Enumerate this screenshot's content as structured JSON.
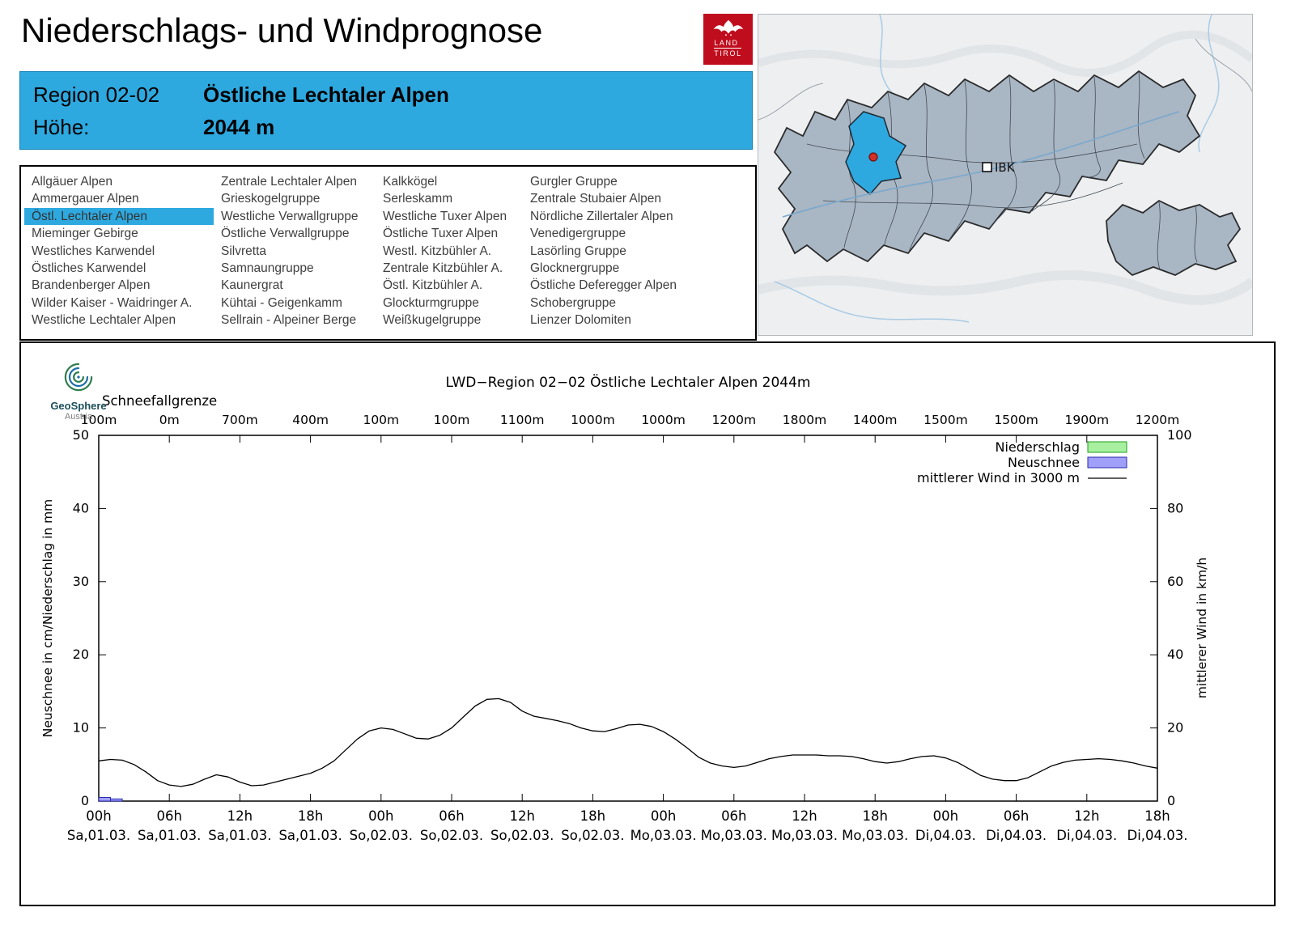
{
  "page": {
    "title": "Niederschlags- und Windprognose"
  },
  "land_tirol_logo": {
    "line1": "LAND",
    "line2": "TIROL"
  },
  "map": {
    "city_label": "IBK",
    "highlight_color": "#2ea9e0"
  },
  "region_header": {
    "region_label": "Region 02-02",
    "region_name": "Östliche Lechtaler Alpen",
    "altitude_label": "Höhe:",
    "altitude_value": "2044 m"
  },
  "region_list": {
    "selected": "Östl. Lechtaler Alpen",
    "columns": [
      [
        "Allgäuer Alpen",
        "Ammergauer Alpen",
        "Östl. Lechtaler Alpen",
        "Mieminger Gebirge",
        "Westliches Karwendel",
        "Östliches Karwendel",
        "Brandenberger Alpen",
        "Wilder Kaiser - Waidringer A.",
        "Westliche Lechtaler Alpen"
      ],
      [
        "Zentrale Lechtaler Alpen",
        "Grieskogelgruppe",
        "Westliche Verwallgruppe",
        "Östliche Verwallgruppe",
        "Silvretta",
        "Samnaungruppe",
        "Kaunergrat",
        "Kühtai - Geigenkamm",
        "Sellrain - Alpeiner Berge"
      ],
      [
        "Kalkkögel",
        "Serleskamm",
        "Westliche Tuxer Alpen",
        "Östliche Tuxer Alpen",
        "Westl. Kitzbühler A.",
        "Zentrale Kitzbühler A.",
        "Östl. Kitzbühler A.",
        "Glockturmgruppe",
        "Weißkugelgruppe"
      ],
      [
        "Gurgler Gruppe",
        "Zentrale Stubaier Alpen",
        "Nördliche Zillertaler Alpen",
        "Venedigergruppe",
        "Lasörling Gruppe",
        "Glocknergruppe",
        "Östliche Deferegger Alpen",
        "Schobergruppe",
        "Lienzer Dolomiten"
      ]
    ]
  },
  "geosphere_logo": {
    "name": "GeoSphere",
    "sub": "Austria"
  },
  "chart_data": {
    "type": "line",
    "title": "LWD−Region 02−02 Östliche Lechtaler Alpen 2044m",
    "snowline": {
      "label": "Schneefallgrenze",
      "values": [
        "100m",
        "0m",
        "700m",
        "400m",
        "100m",
        "100m",
        "1100m",
        "1000m",
        "1000m",
        "1200m",
        "1800m",
        "1400m",
        "1500m",
        "1500m",
        "1900m",
        "1200m"
      ]
    },
    "axes": {
      "left_label": "Neuschnee in cm/Niederschlag in mm",
      "right_label": "mittlerer Wind in km/h",
      "left_range": [
        0,
        50
      ],
      "left_tick_step": 10,
      "right_range": [
        0,
        100
      ],
      "right_tick_step": 20,
      "x_total_hours": 90,
      "x_ticks": [
        {
          "hour": "00h",
          "date": "Sa,01.03."
        },
        {
          "hour": "06h",
          "date": "Sa,01.03."
        },
        {
          "hour": "12h",
          "date": "Sa,01.03."
        },
        {
          "hour": "18h",
          "date": "Sa,01.03."
        },
        {
          "hour": "00h",
          "date": "So,02.03."
        },
        {
          "hour": "06h",
          "date": "So,02.03."
        },
        {
          "hour": "12h",
          "date": "So,02.03."
        },
        {
          "hour": "18h",
          "date": "So,02.03."
        },
        {
          "hour": "00h",
          "date": "Mo,03.03."
        },
        {
          "hour": "06h",
          "date": "Mo,03.03."
        },
        {
          "hour": "12h",
          "date": "Mo,03.03."
        },
        {
          "hour": "18h",
          "date": "Mo,03.03."
        },
        {
          "hour": "00h",
          "date": "Di,04.03."
        },
        {
          "hour": "06h",
          "date": "Di,04.03."
        },
        {
          "hour": "12h",
          "date": "Di,04.03."
        },
        {
          "hour": "18h",
          "date": "Di,04.03."
        }
      ]
    },
    "legend": [
      {
        "label": "Niederschlag",
        "type": "box",
        "fill": "#a8f0a0",
        "stroke": "#1ba01b"
      },
      {
        "label": "Neuschnee",
        "type": "box",
        "fill": "#a0a0f8",
        "stroke": "#2828b0"
      },
      {
        "label": "mittlerer Wind in 3000 m",
        "type": "line",
        "stroke": "#000000"
      }
    ],
    "series": [
      {
        "name": "mittlerer Wind in 3000 m",
        "type": "line",
        "axis": "right",
        "unit": "km/h",
        "x_step_hours": 1,
        "values": [
          11,
          11.4,
          11.2,
          10,
          8,
          5.6,
          4.4,
          4,
          4.6,
          6,
          7.2,
          6.6,
          5.2,
          4.2,
          4.4,
          5.2,
          6,
          6.8,
          7.6,
          9,
          11,
          14,
          17,
          19.2,
          20,
          19.6,
          18.4,
          17.2,
          17,
          18,
          20,
          23,
          26,
          27.8,
          28,
          27,
          24.6,
          23.2,
          22.6,
          22,
          21.2,
          20,
          19.2,
          19,
          19.8,
          20.8,
          21,
          20.4,
          19,
          17,
          14.6,
          12,
          10.4,
          9.6,
          9.2,
          9.6,
          10.6,
          11.6,
          12.2,
          12.6,
          12.6,
          12.6,
          12.4,
          12.4,
          12.2,
          11.6,
          10.8,
          10.4,
          10.8,
          11.6,
          12.2,
          12.4,
          11.8,
          10.6,
          8.8,
          7,
          6,
          5.6,
          5.6,
          6.4,
          8,
          9.6,
          10.6,
          11.2,
          11.4,
          11.6,
          11.4,
          11,
          10.4,
          9.6,
          9
        ]
      },
      {
        "name": "Neuschnee",
        "type": "bar",
        "axis": "left",
        "unit": "cm",
        "points": [
          {
            "hour": 0.5,
            "value": 0.5
          },
          {
            "hour": 1.5,
            "value": 0.3
          }
        ]
      },
      {
        "name": "Niederschlag",
        "type": "bar",
        "axis": "left",
        "unit": "mm",
        "points": []
      }
    ]
  }
}
